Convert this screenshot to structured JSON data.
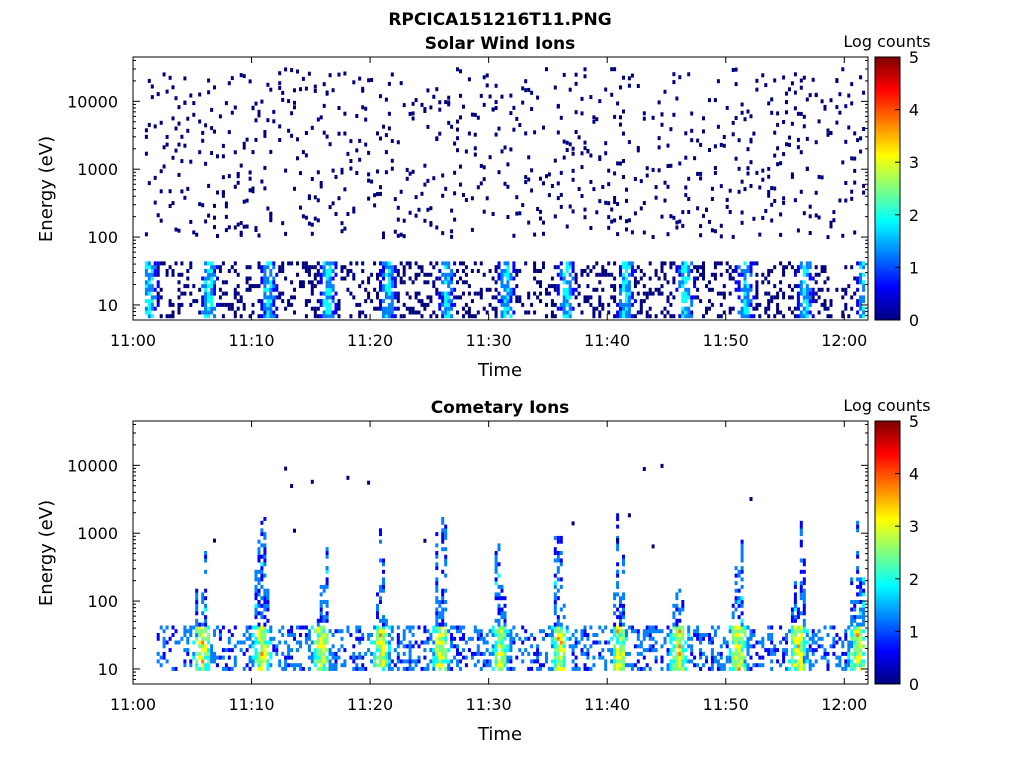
{
  "figure": {
    "title": "RPCICA151216T11.PNG"
  },
  "colormap": [
    "#00007f",
    "#0000ff",
    "#007fff",
    "#00ffff",
    "#7fff7f",
    "#ffff00",
    "#ff7f00",
    "#ff0000",
    "#7f0000"
  ],
  "chart_data": [
    {
      "type": "heatmap",
      "title": "Solar Wind Ions",
      "xlabel": "Time",
      "ylabel": "Energy (eV)",
      "x_ticks": [
        "11:00",
        "11:10",
        "11:20",
        "11:30",
        "11:40",
        "11:50",
        "12:00"
      ],
      "x_range": [
        "11:00",
        "12:02"
      ],
      "y_scale": "log",
      "y_range": [
        6,
        45000
      ],
      "y_ticks": [
        "10",
        "100",
        "1000",
        "10000"
      ],
      "colorbar": {
        "label": "Log counts",
        "range": [
          0,
          5
        ],
        "ticks": [
          "0",
          "1",
          "2",
          "3",
          "4",
          "5"
        ]
      },
      "description_values": {
        "scattered_background_energy_range": [
          100,
          30000
        ],
        "scattered_background_log_counts": 0.3,
        "dense_band_energy_range": [
          6,
          45
        ],
        "dense_band_peak_log_counts": 2.2,
        "data_start": "11:01"
      }
    },
    {
      "type": "heatmap",
      "title": "Cometary Ions",
      "xlabel": "Time",
      "ylabel": "Energy (eV)",
      "x_ticks": [
        "11:00",
        "11:10",
        "11:20",
        "11:30",
        "11:40",
        "11:50",
        "12:00"
      ],
      "x_range": [
        "11:00",
        "12:02"
      ],
      "y_scale": "log",
      "y_range": [
        6,
        45000
      ],
      "y_ticks": [
        "10",
        "100",
        "1000",
        "10000"
      ],
      "colorbar": {
        "label": "Log counts",
        "range": [
          0,
          5
        ],
        "ticks": [
          "0",
          "1",
          "2",
          "3",
          "4",
          "5"
        ]
      },
      "description_values": {
        "dense_band_energy_range": [
          10,
          45
        ],
        "dense_band_peak_log_counts": 3.6,
        "spike_max_energy": 2000,
        "data_start": "11:02"
      }
    }
  ]
}
